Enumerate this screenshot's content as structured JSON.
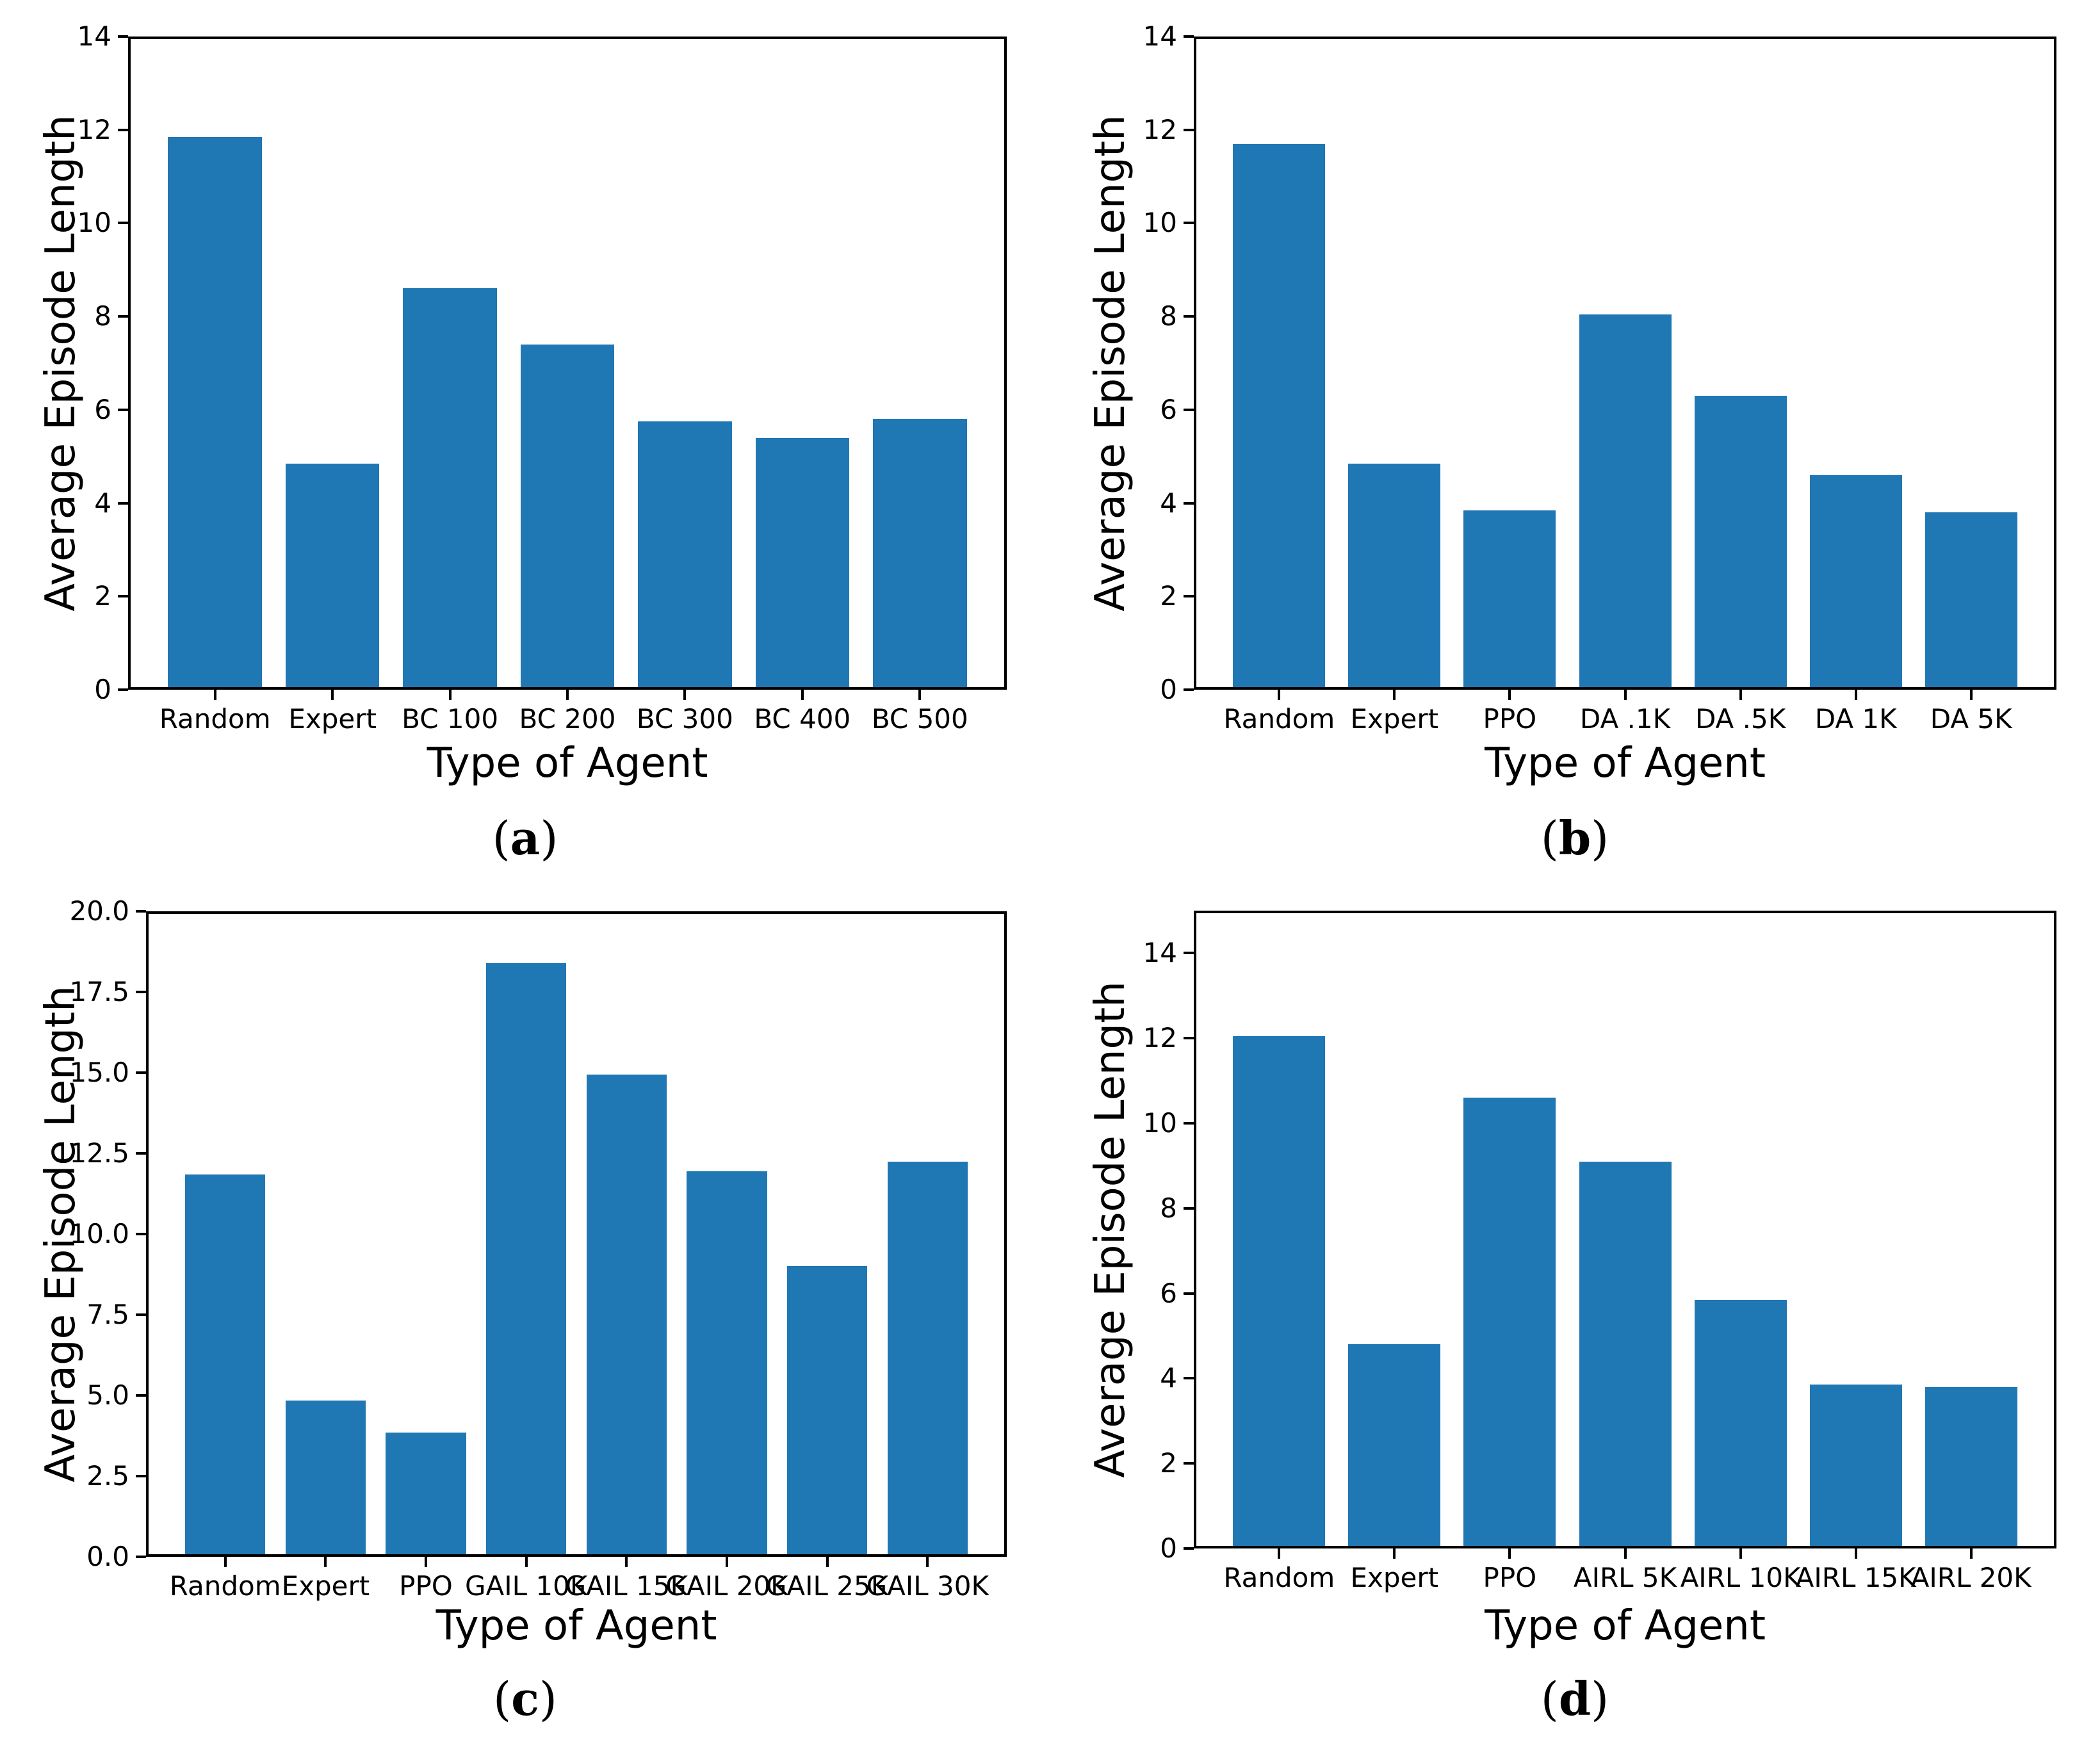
{
  "colors": {
    "bar": "#1f77b4",
    "axis": "#000000",
    "background": "#ffffff",
    "text": "#000000"
  },
  "caption_wrap": {
    "open": "(",
    "close": ")"
  },
  "chart_data": [
    {
      "id": "a",
      "type": "bar",
      "title": "",
      "xlabel": "Type of Agent",
      "ylabel": "Average Episode Length",
      "caption": "a",
      "ylim": [
        0,
        14
      ],
      "grid": false,
      "legend": null,
      "yticks": [
        0,
        2,
        4,
        6,
        8,
        10,
        12,
        14
      ],
      "ytick_labels": [
        "0",
        "2",
        "4",
        "6",
        "8",
        "10",
        "12",
        "14"
      ],
      "categories": [
        "Random",
        "Expert",
        "BC 100",
        "BC 200",
        "BC 300",
        "BC 400",
        "BC 500"
      ],
      "values": [
        11.85,
        4.85,
        8.6,
        7.4,
        5.75,
        5.4,
        5.8
      ]
    },
    {
      "id": "b",
      "type": "bar",
      "title": "",
      "xlabel": "Type of Agent",
      "ylabel": "Average Episode Length",
      "caption": "b",
      "ylim": [
        0,
        14
      ],
      "grid": false,
      "legend": null,
      "yticks": [
        0,
        2,
        4,
        6,
        8,
        10,
        12,
        14
      ],
      "ytick_labels": [
        "0",
        "2",
        "4",
        "6",
        "8",
        "10",
        "12",
        "14"
      ],
      "categories": [
        "Random",
        "Expert",
        "PPO",
        "DA .1K",
        "DA .5K",
        "DA 1K",
        "DA 5K"
      ],
      "values": [
        11.7,
        4.85,
        3.85,
        8.05,
        6.3,
        4.6,
        3.8
      ]
    },
    {
      "id": "c",
      "type": "bar",
      "title": "",
      "xlabel": "Type of Agent",
      "ylabel": "Average Episode Length",
      "caption": "c",
      "ylim": [
        0,
        20
      ],
      "grid": false,
      "legend": null,
      "yticks": [
        0,
        2.5,
        5,
        7.5,
        10,
        12.5,
        15,
        17.5,
        20
      ],
      "ytick_labels": [
        "0.0",
        "2.5",
        "5.0",
        "7.5",
        "10.0",
        "12.5",
        "15.0",
        "17.5",
        "20.0"
      ],
      "categories": [
        "Random",
        "Expert",
        "PPO",
        "GAIL 10K",
        "GAIL 15K",
        "GAIL 20K",
        "GAIL 25K",
        "GAIL 30K"
      ],
      "values": [
        11.85,
        4.85,
        3.85,
        18.4,
        14.95,
        11.95,
        9.0,
        12.25
      ]
    },
    {
      "id": "d",
      "type": "bar",
      "title": "",
      "xlabel": "Type of Agent",
      "ylabel": "Average Episode Length",
      "caption": "d",
      "ylim": [
        0,
        15
      ],
      "grid": false,
      "legend": null,
      "yticks": [
        0,
        2,
        4,
        6,
        8,
        10,
        12,
        14
      ],
      "ytick_labels": [
        "0",
        "2",
        "4",
        "6",
        "8",
        "10",
        "12",
        "14"
      ],
      "categories": [
        "Random",
        "Expert",
        "PPO",
        "AIRL 5K",
        "AIRL 10K",
        "AIRL 15K",
        "AIRL 20K"
      ],
      "values": [
        12.05,
        4.8,
        10.6,
        9.1,
        5.85,
        3.85,
        3.8
      ]
    }
  ]
}
